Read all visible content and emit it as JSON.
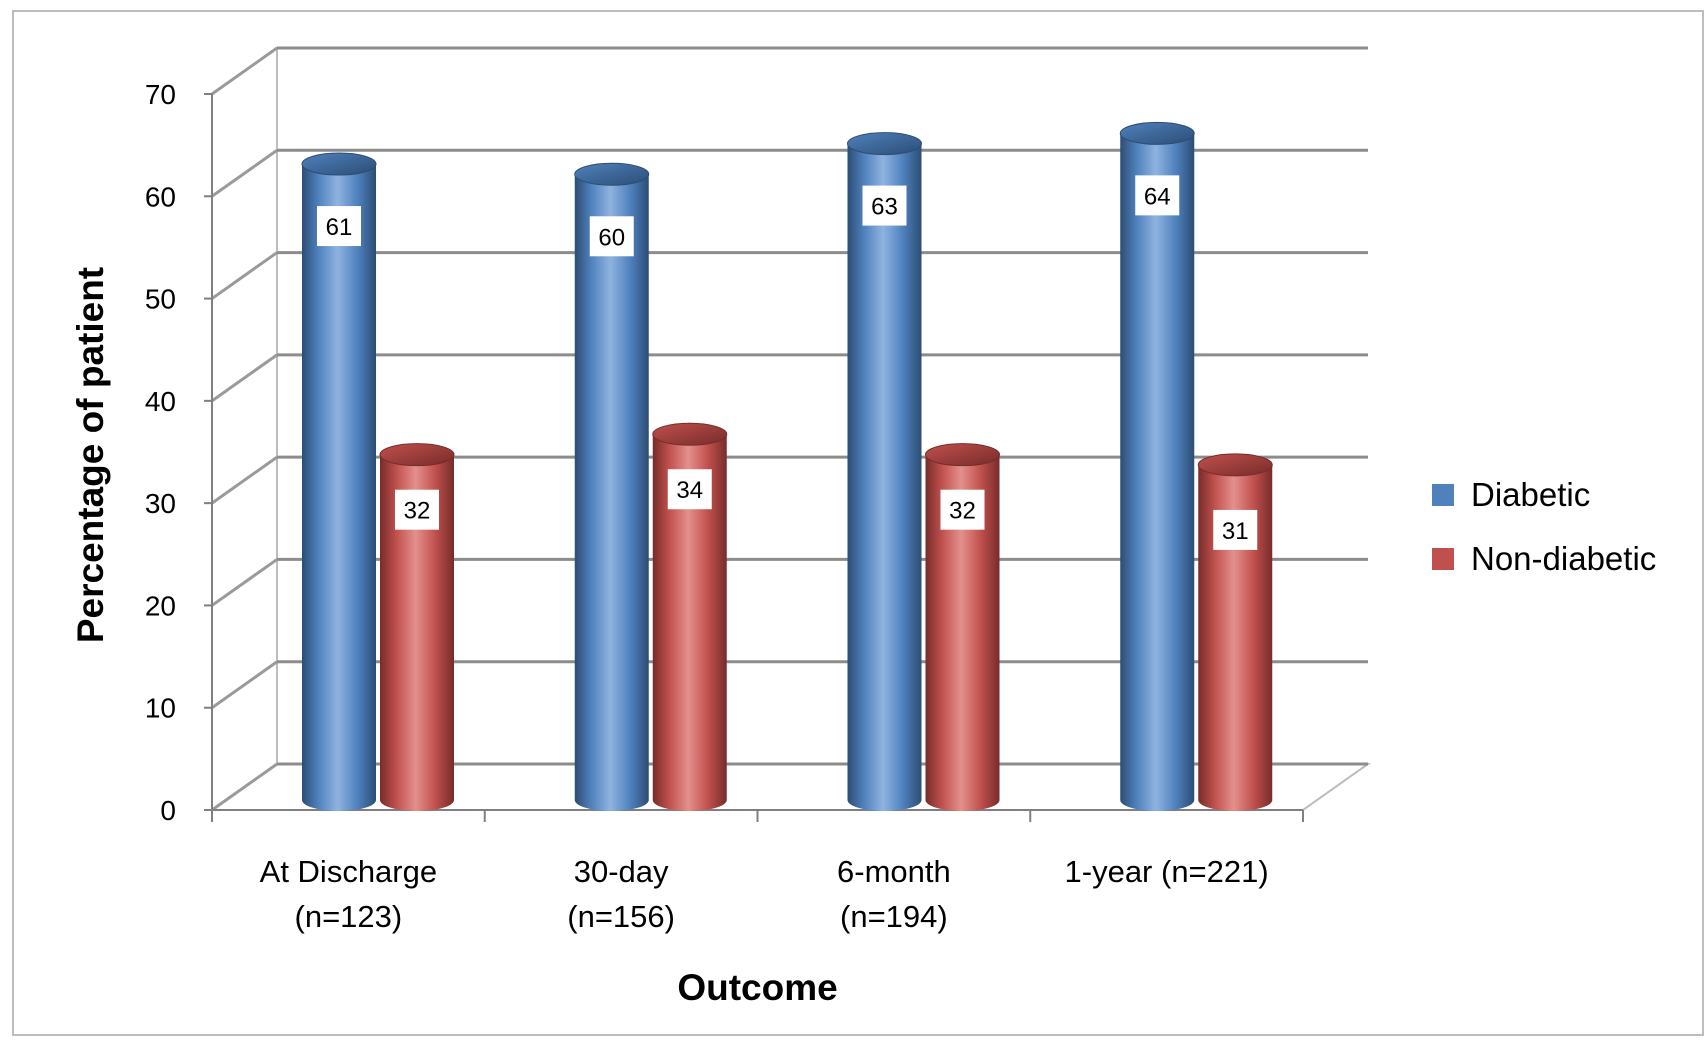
{
  "chart_data": {
    "type": "bar",
    "style": "3d-cylinder",
    "categories": [
      [
        "At Discharge",
        "(n=123)"
      ],
      [
        "30-day",
        "(n=156)"
      ],
      [
        "6-month",
        "(n=194)"
      ],
      [
        "1-year (n=221)"
      ]
    ],
    "series": [
      {
        "name": "Diabetic",
        "values": [
          61,
          60,
          63,
          64
        ],
        "color": "#4f81bd",
        "dark": "#2c4d75",
        "light": "#8fb3e0"
      },
      {
        "name": "Non-diabetic",
        "values": [
          32,
          34,
          32,
          31
        ],
        "color": "#c0504d",
        "dark": "#772c2a",
        "light": "#e3908d"
      }
    ],
    "xlabel": "Outcome",
    "ylabel": "Percentage of patient",
    "ylim": [
      0,
      70
    ],
    "yticks": [
      0,
      10,
      20,
      30,
      40,
      50,
      60,
      70
    ],
    "grid": true,
    "legend": "right",
    "data_labels": true
  }
}
